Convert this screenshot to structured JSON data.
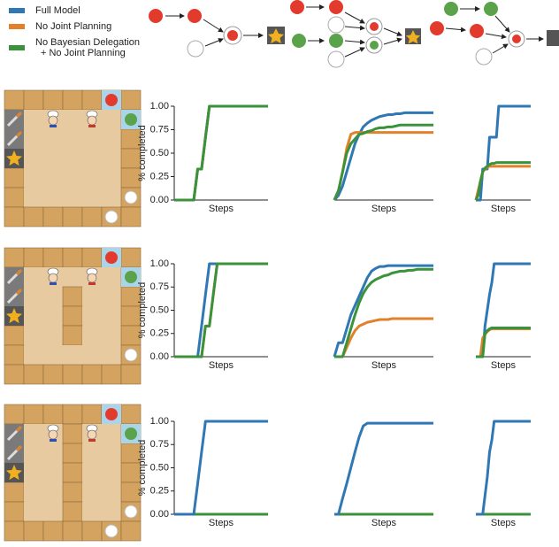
{
  "chart_data": [
    {
      "type": "line",
      "xlabel": "Steps",
      "ylabel": "% completed",
      "x": [
        0,
        1,
        2,
        3,
        4,
        5,
        6,
        7,
        8,
        9,
        10,
        11,
        12,
        13,
        14,
        15,
        16,
        17,
        18,
        19,
        20,
        21,
        22,
        23,
        24
      ],
      "xlim": [
        0,
        24
      ],
      "ylim": [
        0,
        1
      ],
      "yticks": [
        {
          "value": 0,
          "label": "0.00"
        },
        {
          "value": 0.25,
          "label": "0.25"
        },
        {
          "value": 0.5,
          "label": "0.50"
        },
        {
          "value": 0.75,
          "label": "0.75"
        },
        {
          "value": 1,
          "label": "1.00"
        }
      ],
      "series": [
        {
          "name": "Full Model",
          "color": "#2f78b4",
          "values": [
            0,
            0,
            0,
            0,
            0,
            0,
            0.33,
            0.33,
            0.67,
            1,
            1,
            1,
            1,
            1,
            1,
            1,
            1,
            1,
            1,
            1,
            1,
            1,
            1,
            1,
            1
          ]
        },
        {
          "name": "No Joint Planning",
          "color": "#e1812c",
          "values": [
            0,
            0,
            0,
            0,
            0,
            0,
            0.33,
            0.33,
            0.67,
            1,
            1,
            1,
            1,
            1,
            1,
            1,
            1,
            1,
            1,
            1,
            1,
            1,
            1,
            1,
            1
          ]
        },
        {
          "name": "No Bayesian Delegation\n+ No Joint Planning",
          "color": "#3a923a",
          "values": [
            0,
            0,
            0,
            0,
            0,
            0,
            0.33,
            0.33,
            0.67,
            1,
            1,
            1,
            1,
            1,
            1,
            1,
            1,
            1,
            1,
            1,
            1,
            1,
            1,
            1,
            1
          ]
        }
      ]
    },
    {
      "type": "line",
      "xlabel": "Steps",
      "x": [
        0,
        1,
        2,
        3,
        4,
        5,
        6,
        7,
        8,
        9,
        10,
        11,
        12,
        13,
        14,
        15,
        16,
        17,
        18,
        19,
        20,
        21,
        22,
        23,
        24
      ],
      "xlim": [
        0,
        24
      ],
      "ylim": [
        0,
        1
      ],
      "series": [
        {
          "color": "#2f78b4",
          "values": [
            0,
            0.05,
            0.15,
            0.3,
            0.45,
            0.6,
            0.7,
            0.78,
            0.82,
            0.85,
            0.87,
            0.89,
            0.9,
            0.91,
            0.91,
            0.92,
            0.92,
            0.93,
            0.93,
            0.93,
            0.93,
            0.93,
            0.93,
            0.93,
            0.93
          ]
        },
        {
          "color": "#e1812c",
          "values": [
            0,
            0.1,
            0.3,
            0.55,
            0.7,
            0.72,
            0.72,
            0.72,
            0.72,
            0.72,
            0.72,
            0.72,
            0.72,
            0.72,
            0.72,
            0.72,
            0.72,
            0.72,
            0.72,
            0.72,
            0.72,
            0.72,
            0.72,
            0.72,
            0.72
          ]
        },
        {
          "color": "#3a923a",
          "values": [
            0,
            0.1,
            0.3,
            0.5,
            0.6,
            0.65,
            0.7,
            0.71,
            0.73,
            0.74,
            0.76,
            0.77,
            0.77,
            0.78,
            0.78,
            0.79,
            0.8,
            0.8,
            0.8,
            0.8,
            0.8,
            0.8,
            0.8,
            0.8,
            0.8
          ]
        }
      ]
    },
    {
      "type": "line",
      "xlabel": "Steps",
      "x": [
        0,
        1,
        2,
        3,
        4,
        5,
        6,
        7,
        8,
        9,
        10,
        11,
        12,
        13,
        14,
        15,
        16,
        17,
        18,
        19,
        20,
        21,
        22,
        23,
        24
      ],
      "xlim": [
        0,
        24
      ],
      "ylim": [
        0,
        1
      ],
      "series": [
        {
          "color": "#2f78b4",
          "values": [
            0,
            0,
            0,
            0.33,
            0.33,
            0.33,
            0.67,
            0.67,
            0.67,
            0.67,
            1,
            1,
            1,
            1,
            1,
            1,
            1,
            1,
            1,
            1,
            1,
            1,
            1,
            1,
            1
          ]
        },
        {
          "color": "#e1812c",
          "values": [
            0,
            0.1,
            0.2,
            0.3,
            0.33,
            0.35,
            0.36,
            0.36,
            0.36,
            0.36,
            0.36,
            0.36,
            0.36,
            0.36,
            0.36,
            0.36,
            0.36,
            0.36,
            0.36,
            0.36,
            0.36,
            0.36,
            0.36,
            0.36,
            0.36
          ]
        },
        {
          "color": "#3a923a",
          "values": [
            0,
            0.05,
            0.2,
            0.3,
            0.34,
            0.36,
            0.38,
            0.39,
            0.39,
            0.4,
            0.4,
            0.4,
            0.4,
            0.4,
            0.4,
            0.4,
            0.4,
            0.4,
            0.4,
            0.4,
            0.4,
            0.4,
            0.4,
            0.4,
            0.4
          ]
        }
      ]
    },
    {
      "type": "line",
      "xlabel": "Steps",
      "ylabel": "% completed",
      "x": [
        0,
        1,
        2,
        3,
        4,
        5,
        6,
        7,
        8,
        9,
        10,
        11,
        12,
        13,
        14,
        15,
        16,
        17,
        18,
        19,
        20,
        21,
        22,
        23,
        24
      ],
      "xlim": [
        0,
        24
      ],
      "ylim": [
        0,
        1
      ],
      "yticks": [
        {
          "value": 0,
          "label": "0.00"
        },
        {
          "value": 0.25,
          "label": "0.25"
        },
        {
          "value": 0.5,
          "label": "0.50"
        },
        {
          "value": 0.75,
          "label": "0.75"
        },
        {
          "value": 1,
          "label": "1.00"
        }
      ],
      "series": [
        {
          "color": "#2f78b4",
          "values": [
            0,
            0,
            0,
            0,
            0,
            0,
            0,
            0.33,
            0.67,
            1,
            1,
            1,
            1,
            1,
            1,
            1,
            1,
            1,
            1,
            1,
            1,
            1,
            1,
            1,
            1
          ]
        },
        {
          "color": "#e1812c",
          "values": [
            0,
            0,
            0,
            0,
            0,
            0,
            0,
            0,
            0.33,
            0.33,
            0.67,
            1,
            1,
            1,
            1,
            1,
            1,
            1,
            1,
            1,
            1,
            1,
            1,
            1,
            1
          ]
        },
        {
          "color": "#3a923a",
          "values": [
            0,
            0,
            0,
            0,
            0,
            0,
            0,
            0,
            0.33,
            0.33,
            0.67,
            1,
            1,
            1,
            1,
            1,
            1,
            1,
            1,
            1,
            1,
            1,
            1,
            1,
            1
          ]
        }
      ]
    },
    {
      "type": "line",
      "xlabel": "Steps",
      "x": [
        0,
        1,
        2,
        3,
        4,
        5,
        6,
        7,
        8,
        9,
        10,
        11,
        12,
        13,
        14,
        15,
        16,
        17,
        18,
        19,
        20,
        21,
        22,
        23,
        24
      ],
      "xlim": [
        0,
        24
      ],
      "ylim": [
        0,
        1
      ],
      "series": [
        {
          "color": "#2f78b4",
          "values": [
            0,
            0.15,
            0.15,
            0.3,
            0.45,
            0.55,
            0.65,
            0.75,
            0.85,
            0.92,
            0.95,
            0.97,
            0.97,
            0.98,
            0.98,
            0.98,
            0.98,
            0.98,
            0.98,
            0.98,
            0.98,
            0.98,
            0.98,
            0.98,
            0.98
          ]
        },
        {
          "color": "#e1812c",
          "values": [
            0,
            0,
            0,
            0.1,
            0.2,
            0.28,
            0.33,
            0.35,
            0.37,
            0.38,
            0.39,
            0.4,
            0.4,
            0.4,
            0.41,
            0.41,
            0.41,
            0.41,
            0.41,
            0.41,
            0.41,
            0.41,
            0.41,
            0.41,
            0.41
          ]
        },
        {
          "color": "#3a923a",
          "values": [
            0,
            0,
            0,
            0.15,
            0.3,
            0.45,
            0.58,
            0.68,
            0.75,
            0.8,
            0.83,
            0.85,
            0.87,
            0.88,
            0.9,
            0.91,
            0.92,
            0.92,
            0.93,
            0.93,
            0.94,
            0.94,
            0.94,
            0.94,
            0.94
          ]
        }
      ]
    },
    {
      "type": "line",
      "xlabel": "Steps",
      "x": [
        0,
        1,
        2,
        3,
        4,
        5,
        6,
        7,
        8,
        9,
        10,
        11,
        12,
        13,
        14,
        15,
        16,
        17,
        18,
        19,
        20,
        21,
        22,
        23,
        24
      ],
      "xlim": [
        0,
        24
      ],
      "ylim": [
        0,
        1
      ],
      "series": [
        {
          "color": "#2f78b4",
          "values": [
            0,
            0,
            0,
            0,
            0.33,
            0.5,
            0.67,
            0.8,
            1,
            1,
            1,
            1,
            1,
            1,
            1,
            1,
            1,
            1,
            1,
            1,
            1,
            1,
            1,
            1,
            1
          ]
        },
        {
          "color": "#e1812c",
          "values": [
            0,
            0,
            0,
            0.2,
            0.24,
            0.27,
            0.29,
            0.3,
            0.3,
            0.3,
            0.3,
            0.3,
            0.3,
            0.3,
            0.3,
            0.3,
            0.3,
            0.3,
            0.3,
            0.3,
            0.3,
            0.3,
            0.3,
            0.3,
            0.3
          ]
        },
        {
          "color": "#3a923a",
          "values": [
            0,
            0,
            0,
            0,
            0.25,
            0.28,
            0.3,
            0.31,
            0.31,
            0.31,
            0.31,
            0.31,
            0.31,
            0.31,
            0.31,
            0.31,
            0.31,
            0.31,
            0.31,
            0.31,
            0.31,
            0.31,
            0.31,
            0.31,
            0.31
          ]
        }
      ]
    },
    {
      "type": "line",
      "xlabel": "Steps",
      "ylabel": "% completed",
      "x": [
        0,
        1,
        2,
        3,
        4,
        5,
        6,
        7,
        8,
        9,
        10,
        11,
        12,
        13,
        14,
        15,
        16,
        17,
        18,
        19,
        20,
        21,
        22,
        23,
        24
      ],
      "xlim": [
        0,
        24
      ],
      "ylim": [
        0,
        1
      ],
      "yticks": [
        {
          "value": 0,
          "label": "0.00"
        },
        {
          "value": 0.25,
          "label": "0.25"
        },
        {
          "value": 0.5,
          "label": "0.50"
        },
        {
          "value": 0.75,
          "label": "0.75"
        },
        {
          "value": 1,
          "label": "1.00"
        }
      ],
      "series": [
        {
          "color": "#e1812c",
          "values": [
            0,
            0,
            0,
            0,
            0,
            0,
            0,
            0,
            0,
            0,
            0,
            0,
            0,
            0,
            0,
            0,
            0,
            0,
            0,
            0,
            0,
            0,
            0,
            0,
            0
          ]
        },
        {
          "color": "#3a923a",
          "values": [
            0,
            0,
            0,
            0,
            0,
            0,
            0,
            0,
            0,
            0,
            0,
            0,
            0,
            0,
            0,
            0,
            0,
            0,
            0,
            0,
            0,
            0,
            0,
            0,
            0
          ]
        },
        {
          "color": "#2f78b4",
          "values": [
            0,
            0,
            0,
            0,
            0,
            0,
            0.33,
            0.67,
            1,
            1,
            1,
            1,
            1,
            1,
            1,
            1,
            1,
            1,
            1,
            1,
            1,
            1,
            1,
            1,
            1
          ]
        }
      ]
    },
    {
      "type": "line",
      "xlabel": "Steps",
      "x": [
        0,
        1,
        2,
        3,
        4,
        5,
        6,
        7,
        8,
        9,
        10,
        11,
        12,
        13,
        14,
        15,
        16,
        17,
        18,
        19,
        20,
        21,
        22,
        23,
        24
      ],
      "xlim": [
        0,
        24
      ],
      "ylim": [
        0,
        1
      ],
      "series": [
        {
          "color": "#e1812c",
          "values": [
            0,
            0,
            0,
            0,
            0,
            0,
            0,
            0,
            0,
            0,
            0,
            0,
            0,
            0,
            0,
            0,
            0,
            0,
            0,
            0,
            0,
            0,
            0,
            0,
            0
          ]
        },
        {
          "color": "#3a923a",
          "values": [
            0,
            0,
            0,
            0,
            0,
            0,
            0,
            0,
            0,
            0,
            0,
            0,
            0,
            0,
            0,
            0,
            0,
            0,
            0,
            0,
            0,
            0,
            0,
            0,
            0
          ]
        },
        {
          "color": "#2f78b4",
          "values": [
            0,
            0,
            0.17,
            0.33,
            0.5,
            0.67,
            0.83,
            0.95,
            0.98,
            0.98,
            0.98,
            0.98,
            0.98,
            0.98,
            0.98,
            0.98,
            0.98,
            0.98,
            0.98,
            0.98,
            0.98,
            0.98,
            0.98,
            0.98,
            0.98
          ]
        }
      ]
    },
    {
      "type": "line",
      "xlabel": "Steps",
      "x": [
        0,
        1,
        2,
        3,
        4,
        5,
        6,
        7,
        8,
        9,
        10,
        11,
        12,
        13,
        14,
        15,
        16,
        17,
        18,
        19,
        20,
        21,
        22,
        23,
        24
      ],
      "xlim": [
        0,
        24
      ],
      "ylim": [
        0,
        1
      ],
      "series": [
        {
          "color": "#e1812c",
          "values": [
            0,
            0,
            0,
            0,
            0,
            0,
            0,
            0,
            0,
            0,
            0,
            0,
            0,
            0,
            0,
            0,
            0,
            0,
            0,
            0,
            0,
            0,
            0,
            0,
            0
          ]
        },
        {
          "color": "#3a923a",
          "values": [
            0,
            0,
            0,
            0,
            0,
            0,
            0,
            0,
            0,
            0,
            0,
            0,
            0,
            0,
            0,
            0,
            0,
            0,
            0,
            0,
            0,
            0,
            0,
            0,
            0
          ]
        },
        {
          "color": "#2f78b4",
          "values": [
            0,
            0,
            0,
            0,
            0.2,
            0.4,
            0.67,
            0.8,
            1,
            1,
            1,
            1,
            1,
            1,
            1,
            1,
            1,
            1,
            1,
            1,
            1,
            1,
            1,
            1,
            1
          ]
        }
      ]
    }
  ]
}
